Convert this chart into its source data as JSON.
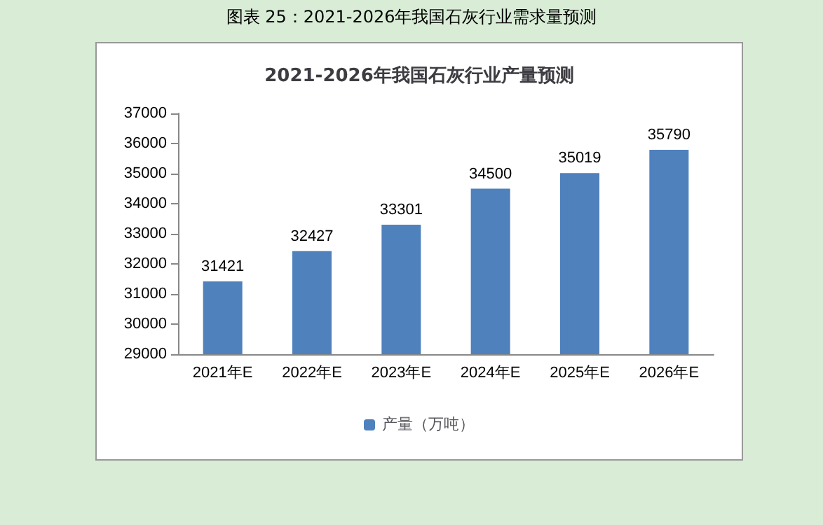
{
  "chart_data": {
    "type": "bar",
    "title": "图表 25：2021-2026年我国石灰行业需求量预测",
    "subtitle": "2021-2026年我国石灰行业产量预测",
    "categories": [
      "2021年E",
      "2022年E",
      "2023年E",
      "2024年E",
      "2025年E",
      "2026年E"
    ],
    "series": [
      {
        "name": "产量（万吨）",
        "color": "#4f81bd",
        "values": [
          31421,
          32427,
          33301,
          34500,
          35019,
          35790
        ]
      }
    ],
    "ylim": [
      29000,
      37000
    ],
    "yticks": [
      29000,
      30000,
      31000,
      32000,
      33000,
      34000,
      35000,
      36000,
      37000
    ],
    "grid": false,
    "legend": "bottom",
    "data_labels": true
  }
}
